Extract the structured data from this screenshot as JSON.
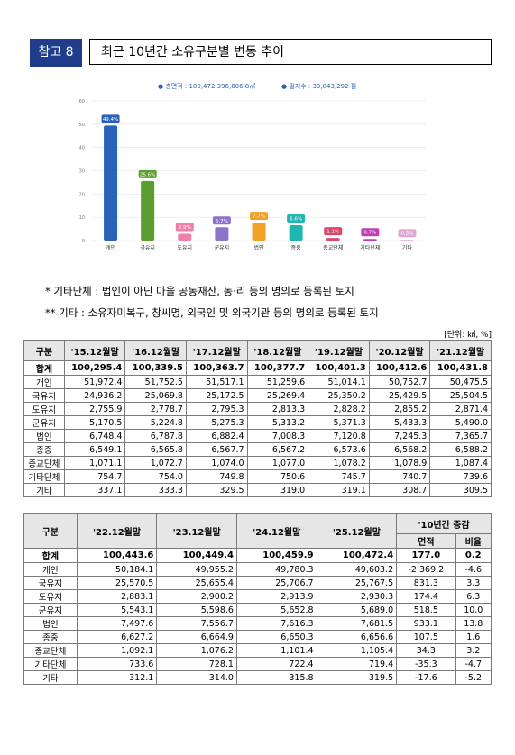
{
  "header": {
    "badge": "참고 8",
    "title": "최근 10년간 소유구분별 변동 추이"
  },
  "legend": {
    "total_area": "● 총면적 : 100,472,396,606.8㎡",
    "parcels": "● 필지수 : 39,843,292 필"
  },
  "chart_data": {
    "type": "bar",
    "categories": [
      "개인",
      "국유지",
      "도유지",
      "군유지",
      "법인",
      "종중",
      "종교단체",
      "기타단체",
      "기타"
    ],
    "values": [
      49.4,
      25.6,
      2.9,
      5.7,
      7.7,
      6.6,
      1.1,
      0.7,
      0.3
    ],
    "labels": [
      "49.4%",
      "25.6%",
      "2.9%",
      "5.7%",
      "7.7%",
      "6.6%",
      "1.1%",
      "0.7%",
      "0.3%"
    ],
    "colors": [
      "#2a62b8",
      "#5a9e2f",
      "#ef7fa6",
      "#8b74c9",
      "#f2a228",
      "#21b5b2",
      "#d94a6a",
      "#bf3fb2",
      "#e0a8d0"
    ],
    "ylim": [
      0,
      60
    ],
    "yticks": [
      "0",
      "10",
      "20",
      "30",
      "40",
      "50",
      "60"
    ],
    "title": "",
    "xlabel": "",
    "ylabel": ""
  },
  "notes": [
    "* 기타단체 : 법인이 아닌 마을 공동재산, 동·리 등의 명의로 등록된 토지",
    "** 기타 : 소유자미복구, 창씨명, 외국인 및 외국기관 등의 명의로 등록된 토지"
  ],
  "unit": "[단위: ㎢, %]",
  "table1": {
    "headers": [
      "구분",
      "'15.12월말",
      "'16.12월말",
      "'17.12월말",
      "'18.12월말",
      "'19.12월말",
      "'20.12월말",
      "'21.12월말"
    ],
    "rows": [
      [
        "합계",
        "100,295.4",
        "100,339.5",
        "100,363.7",
        "100,377.7",
        "100,401.3",
        "100,412.6",
        "100,431.8"
      ],
      [
        "개인",
        "51,972.4",
        "51,752.5",
        "51,517.1",
        "51,259.6",
        "51,014.1",
        "50,752.7",
        "50,475.5"
      ],
      [
        "국유지",
        "24,936.2",
        "25,069.8",
        "25,172.5",
        "25,269.4",
        "25,350.2",
        "25,429.5",
        "25,504.5"
      ],
      [
        "도유지",
        "2,755.9",
        "2,778.7",
        "2,795.3",
        "2,813.3",
        "2,828.2",
        "2,855.2",
        "2,871.4"
      ],
      [
        "군유지",
        "5,170.5",
        "5,224.8",
        "5,275.3",
        "5,313.2",
        "5,371.3",
        "5,433.3",
        "5,490.0"
      ],
      [
        "법인",
        "6,748.4",
        "6,787.8",
        "6,882.4",
        "7,008.3",
        "7,120.8",
        "7,245.3",
        "7,365.7"
      ],
      [
        "종중",
        "6,549.1",
        "6,565.8",
        "6,567.7",
        "6,567.2",
        "6,573.6",
        "6,568.2",
        "6,588.2"
      ],
      [
        "종교단체",
        "1,071.1",
        "1,072.7",
        "1,074.0",
        "1,077.0",
        "1,078.2",
        "1,078.9",
        "1,087.4"
      ],
      [
        "기타단체",
        "754.7",
        "754.0",
        "749.8",
        "750.6",
        "745.7",
        "740.7",
        "739.6"
      ],
      [
        "기타",
        "337.1",
        "333.3",
        "329.5",
        "319.0",
        "319.1",
        "308.7",
        "309.5"
      ]
    ]
  },
  "table2": {
    "headers": [
      "구분",
      "'22.12월말",
      "'23.12월말",
      "'24.12월말",
      "'25.12월말",
      "'10년간 증감"
    ],
    "subheaders": [
      "면적",
      "비율"
    ],
    "rows": [
      [
        "합계",
        "100,443.6",
        "100,449.4",
        "100,459.9",
        "100,472.4",
        "177.0",
        "0.2"
      ],
      [
        "개인",
        "50,184.1",
        "49,955.2",
        "49,780.3",
        "49,603.2",
        "-2,369.2",
        "-4.6"
      ],
      [
        "국유지",
        "25,570.5",
        "25,655.4",
        "25,706.7",
        "25,767.5",
        "831.3",
        "3.3"
      ],
      [
        "도유지",
        "2,883.1",
        "2,900.2",
        "2,913.9",
        "2,930.3",
        "174.4",
        "6.3"
      ],
      [
        "군유지",
        "5,543.1",
        "5,598.6",
        "5,652.8",
        "5,689.0",
        "518.5",
        "10.0"
      ],
      [
        "법인",
        "7,497.6",
        "7,556.7",
        "7,616.3",
        "7,681.5",
        "933.1",
        "13.8"
      ],
      [
        "종중",
        "6,627.2",
        "6,664.9",
        "6,650.3",
        "6,656.6",
        "107.5",
        "1.6"
      ],
      [
        "종교단체",
        "1,092.1",
        "1,076.2",
        "1,101.4",
        "1,105.4",
        "34.3",
        "3.2"
      ],
      [
        "기타단체",
        "733.6",
        "728.1",
        "722.4",
        "719.4",
        "-35.3",
        "-4.7"
      ],
      [
        "기타",
        "312.1",
        "314.0",
        "315.8",
        "319.5",
        "-17.6",
        "-5.2"
      ]
    ]
  }
}
